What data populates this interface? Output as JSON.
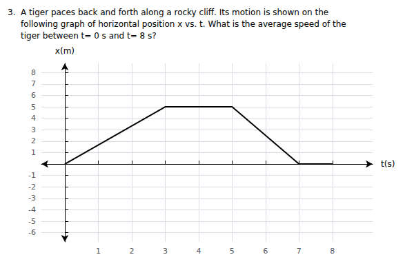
{
  "chart_data": {
    "type": "line",
    "title": "3.  A tiger paces back and forth along a rocky cliff. Its motion is shown on the\n     following graph of horizontal position x vs. t. What is the average speed of the\n     tiger between t= 0 s and t= 8 s?",
    "x": [
      0,
      3,
      5,
      7,
      8
    ],
    "values": [
      0,
      5,
      5,
      0,
      0
    ],
    "color": "#000000",
    "xlabel": "t(s)",
    "ylabel": "x(m)",
    "xlim": [
      -0.7,
      9.2
    ],
    "ylim": [
      -6.8,
      8.8
    ],
    "xticks": [
      1,
      2,
      3,
      4,
      5,
      6,
      7,
      8
    ],
    "yticks": [
      -6,
      -5,
      -4,
      -3,
      -2,
      -1,
      1,
      2,
      3,
      4,
      5,
      6,
      7,
      8
    ],
    "grid": true
  }
}
